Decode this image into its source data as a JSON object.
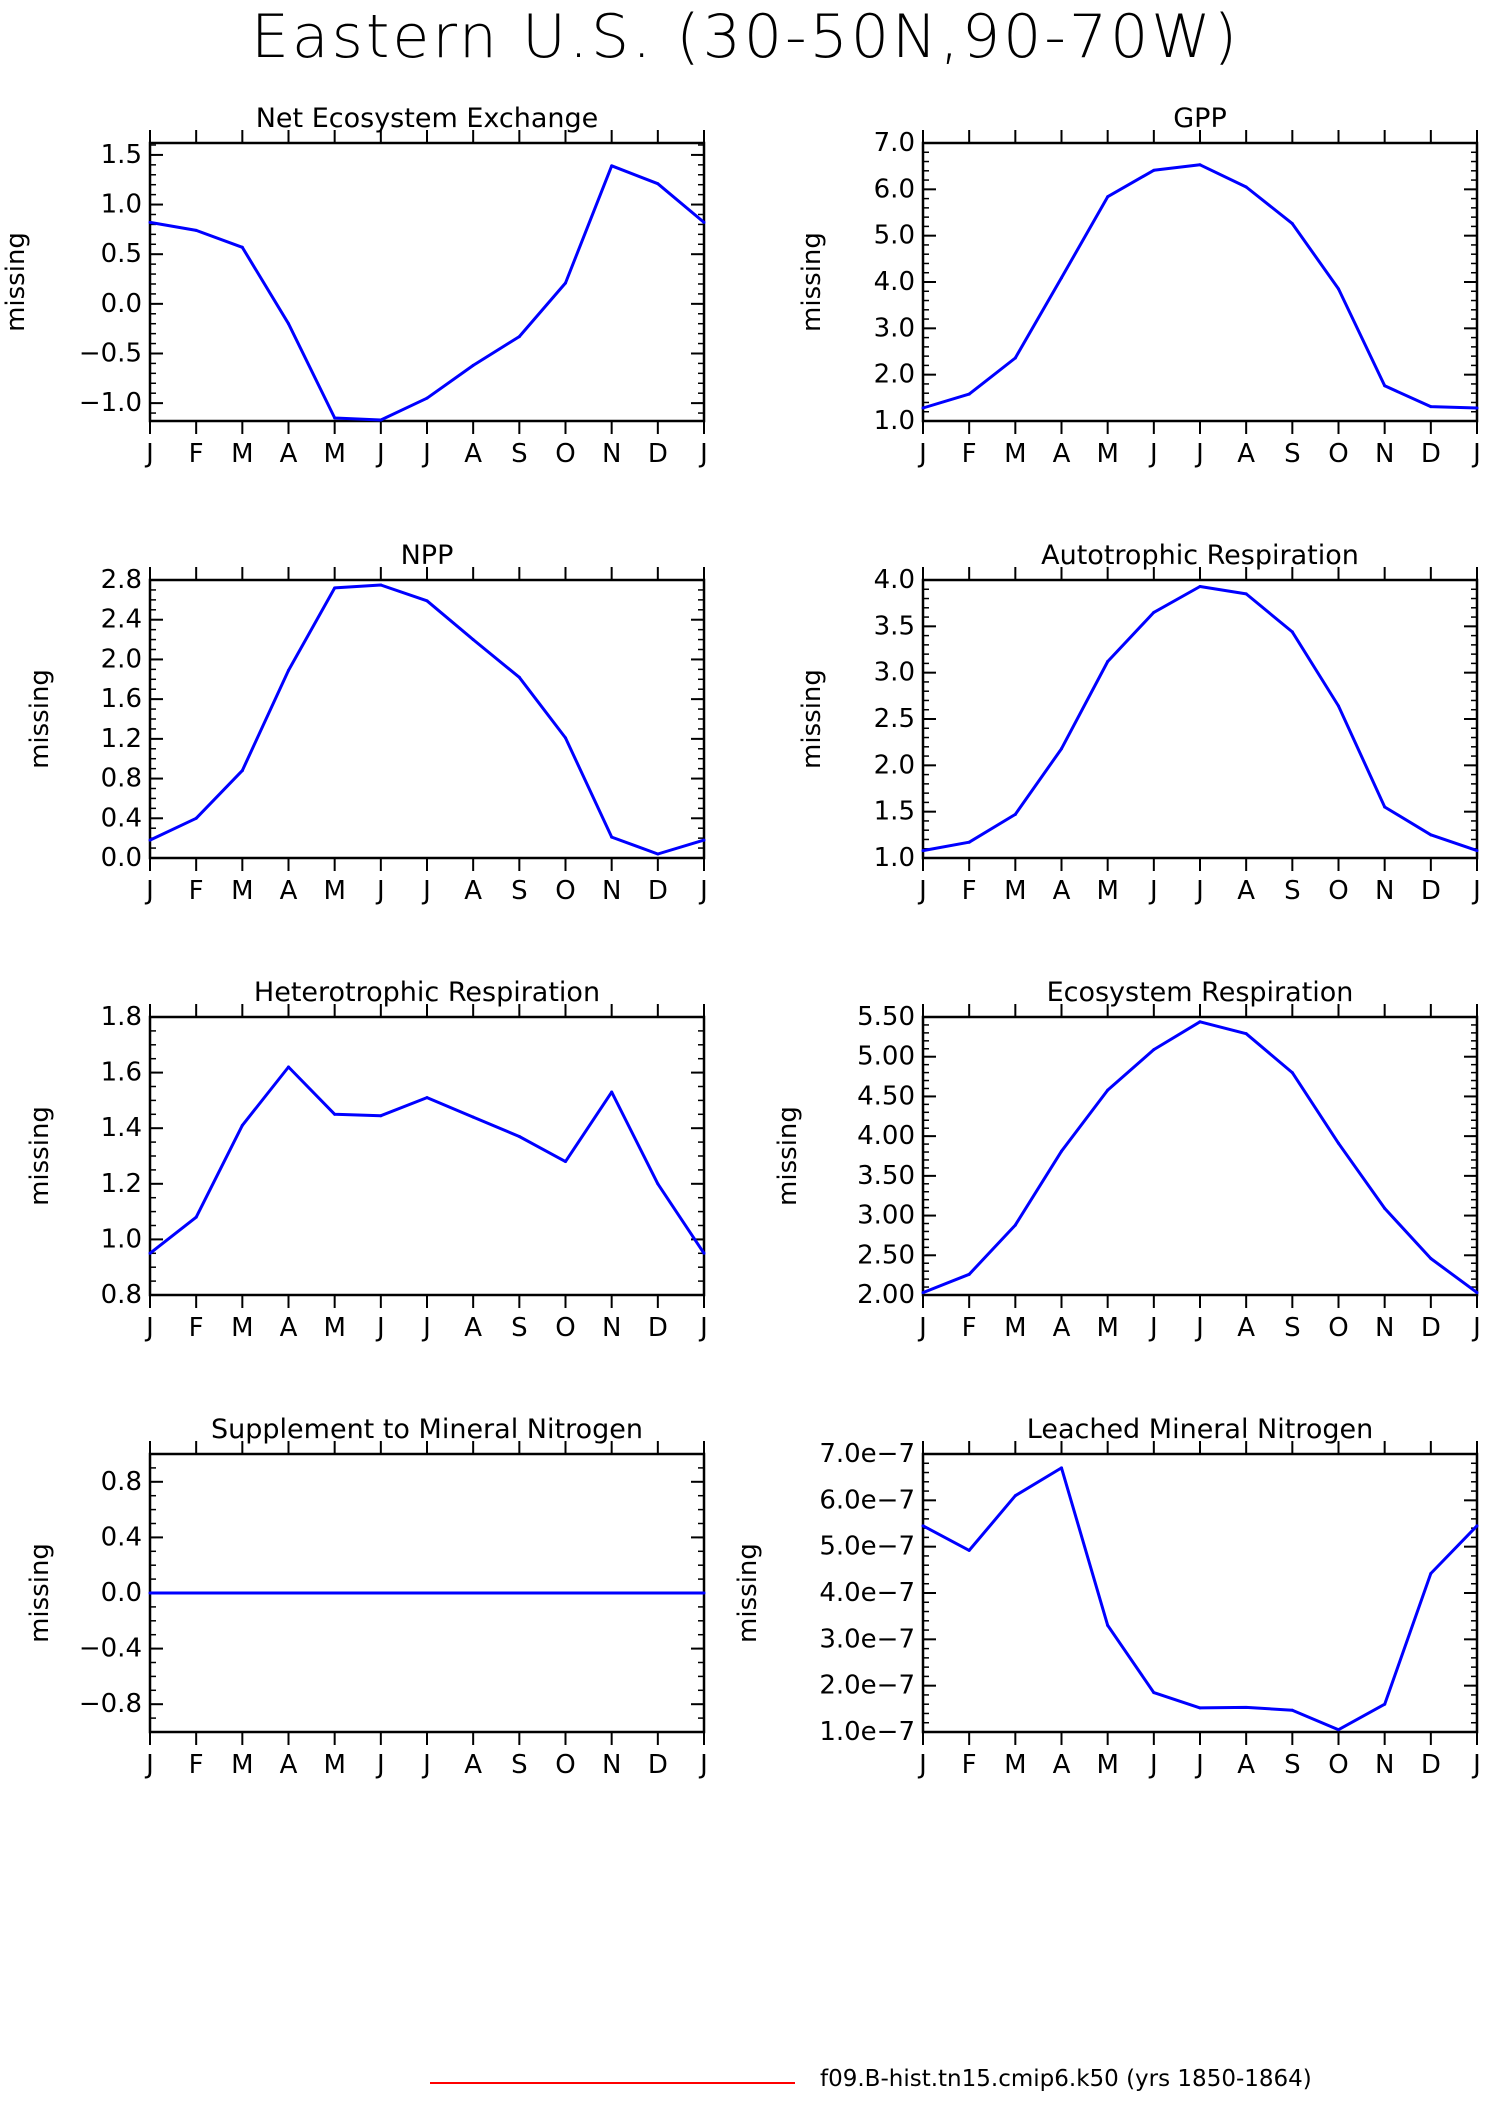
{
  "title": "Eastern U.S. (30-50N,90-70W)",
  "legend": {
    "label": "f09.B-hist.tn15.cmip6.k50 (yrs 1850-1864)",
    "color": "#ff0000"
  },
  "line_color": "#0000ff",
  "chart_data": [
    {
      "type": "line",
      "title": "Net Ecosystem Exchange",
      "ylabel": "missing",
      "categories": [
        "J",
        "F",
        "M",
        "A",
        "M",
        "J",
        "J",
        "A",
        "S",
        "O",
        "N",
        "D",
        "J"
      ],
      "values": [
        0.82,
        0.74,
        0.57,
        -0.2,
        -1.15,
        -1.17,
        -0.95,
        -0.62,
        -0.33,
        0.21,
        1.39,
        1.21,
        0.82
      ],
      "ylim": [
        -1.18,
        1.62
      ],
      "yticks": [
        -1.0,
        -0.5,
        0.0,
        0.5,
        1.0,
        1.5
      ],
      "ytick_labels": [
        "−1.0",
        "−0.5",
        "0.0",
        "0.5",
        "1.0",
        "1.5"
      ],
      "yminor": 0.1
    },
    {
      "type": "line",
      "title": "GPP",
      "ylabel": "missing",
      "categories": [
        "J",
        "F",
        "M",
        "A",
        "M",
        "J",
        "J",
        "A",
        "S",
        "O",
        "N",
        "D",
        "J"
      ],
      "values": [
        1.28,
        1.58,
        2.36,
        4.09,
        5.84,
        6.41,
        6.53,
        6.05,
        5.26,
        3.85,
        1.76,
        1.31,
        1.28
      ],
      "ylim": [
        1.0,
        7.0
      ],
      "yticks": [
        1.0,
        2.0,
        3.0,
        4.0,
        5.0,
        6.0,
        7.0
      ],
      "ytick_labels": [
        "1.0",
        "2.0",
        "3.0",
        "4.0",
        "5.0",
        "6.0",
        "7.0"
      ],
      "yminor": 0.2
    },
    {
      "type": "line",
      "title": "NPP",
      "ylabel": "missing",
      "categories": [
        "J",
        "F",
        "M",
        "A",
        "M",
        "J",
        "J",
        "A",
        "S",
        "O",
        "N",
        "D",
        "J"
      ],
      "values": [
        0.18,
        0.4,
        0.88,
        1.89,
        2.72,
        2.75,
        2.59,
        2.2,
        1.82,
        1.21,
        0.21,
        0.04,
        0.18
      ],
      "ylim": [
        0.0,
        2.8
      ],
      "yticks": [
        0.0,
        0.4,
        0.8,
        1.2,
        1.6,
        2.0,
        2.4,
        2.8
      ],
      "ytick_labels": [
        "0.0",
        "0.4",
        "0.8",
        "1.2",
        "1.6",
        "2.0",
        "2.4",
        "2.8"
      ],
      "yminor": 0.1
    },
    {
      "type": "line",
      "title": "Autotrophic Respiration",
      "ylabel": "missing",
      "categories": [
        "J",
        "F",
        "M",
        "A",
        "M",
        "J",
        "J",
        "A",
        "S",
        "O",
        "N",
        "D",
        "J"
      ],
      "values": [
        1.08,
        1.17,
        1.47,
        2.18,
        3.12,
        3.65,
        3.93,
        3.85,
        3.44,
        2.64,
        1.55,
        1.25,
        1.08
      ],
      "ylim": [
        1.0,
        4.0
      ],
      "yticks": [
        1.0,
        1.5,
        2.0,
        2.5,
        3.0,
        3.5,
        4.0
      ],
      "ytick_labels": [
        "1.0",
        "1.5",
        "2.0",
        "2.5",
        "3.0",
        "3.5",
        "4.0"
      ],
      "yminor": 0.1
    },
    {
      "type": "line",
      "title": "Heterotrophic Respiration",
      "ylabel": "missing",
      "categories": [
        "J",
        "F",
        "M",
        "A",
        "M",
        "J",
        "J",
        "A",
        "S",
        "O",
        "N",
        "D",
        "J"
      ],
      "values": [
        0.95,
        1.08,
        1.41,
        1.62,
        1.45,
        1.445,
        1.51,
        1.44,
        1.37,
        1.28,
        1.53,
        1.2,
        0.95
      ],
      "ylim": [
        0.8,
        1.8
      ],
      "yticks": [
        0.8,
        1.0,
        1.2,
        1.4,
        1.6,
        1.8
      ],
      "ytick_labels": [
        "0.8",
        "1.0",
        "1.2",
        "1.4",
        "1.6",
        "1.8"
      ],
      "yminor": 0.05
    },
    {
      "type": "line",
      "title": "Ecosystem Respiration",
      "ylabel": "missing",
      "categories": [
        "J",
        "F",
        "M",
        "A",
        "M",
        "J",
        "J",
        "A",
        "S",
        "O",
        "N",
        "D",
        "J"
      ],
      "values": [
        2.03,
        2.26,
        2.88,
        3.81,
        4.58,
        5.09,
        5.44,
        5.29,
        4.8,
        3.91,
        3.09,
        2.46,
        2.03
      ],
      "ylim": [
        2.0,
        5.5
      ],
      "yticks": [
        2.0,
        2.5,
        3.0,
        3.5,
        4.0,
        4.5,
        5.0,
        5.5
      ],
      "ytick_labels": [
        "2.00",
        "2.50",
        "3.00",
        "3.50",
        "4.00",
        "4.50",
        "5.00",
        "5.50"
      ],
      "yminor": 0.1
    },
    {
      "type": "line",
      "title": "Supplement to Mineral Nitrogen",
      "ylabel": "missing",
      "categories": [
        "J",
        "F",
        "M",
        "A",
        "M",
        "J",
        "J",
        "A",
        "S",
        "O",
        "N",
        "D",
        "J"
      ],
      "values": [
        0,
        0,
        0,
        0,
        0,
        0,
        0,
        0,
        0,
        0,
        0,
        0,
        0
      ],
      "ylim": [
        -1.0,
        1.0
      ],
      "yticks": [
        -0.8,
        -0.4,
        0.0,
        0.4,
        0.8
      ],
      "ytick_labels": [
        "−0.8",
        "−0.4",
        "0.0",
        "0.4",
        "0.8"
      ],
      "yminor": 0.1
    },
    {
      "type": "line",
      "title": "Leached Mineral Nitrogen",
      "ylabel": "missing",
      "categories": [
        "J",
        "F",
        "M",
        "A",
        "M",
        "J",
        "J",
        "A",
        "S",
        "O",
        "N",
        "D",
        "J"
      ],
      "values": [
        5.45e-07,
        4.92e-07,
        6.1e-07,
        6.7e-07,
        3.3e-07,
        1.85e-07,
        1.52e-07,
        1.53e-07,
        1.47e-07,
        1.05e-07,
        1.6e-07,
        4.42e-07,
        5.45e-07
      ],
      "ylim": [
        1e-07,
        7e-07
      ],
      "yticks": [
        1e-07,
        2e-07,
        3e-07,
        4e-07,
        5e-07,
        6e-07,
        7e-07
      ],
      "ytick_labels": [
        "1.0e−7",
        "2.0e−7",
        "3.0e−7",
        "4.0e−7",
        "5.0e−7",
        "6.0e−7",
        "7.0e−7"
      ],
      "yminor": 2e-08
    }
  ]
}
